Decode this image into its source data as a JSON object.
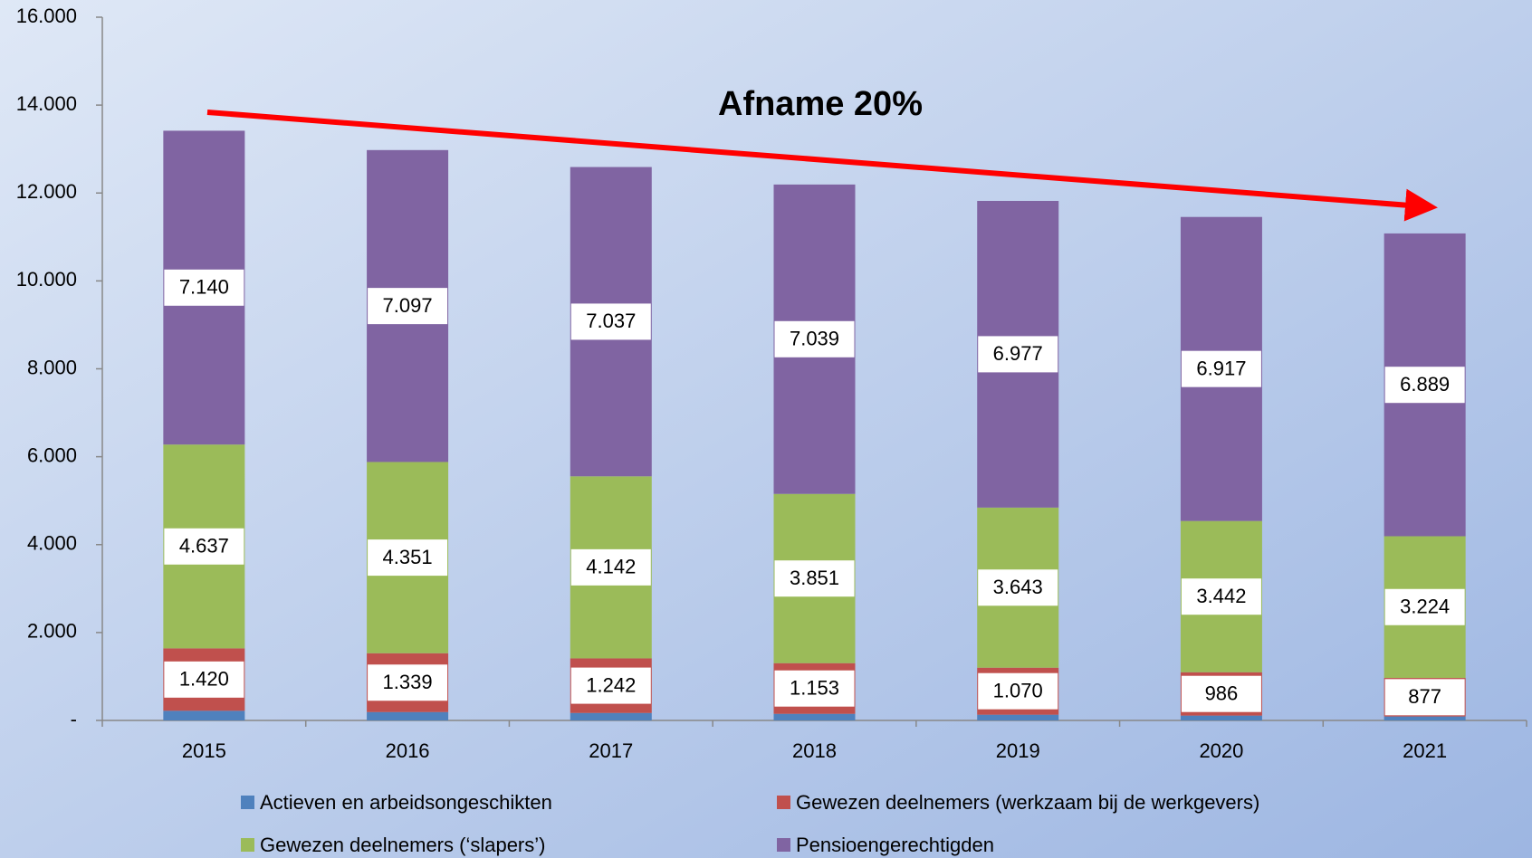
{
  "chart_data": {
    "type": "stacked_bar",
    "annotation": "Afname 20%",
    "categories": [
      "2015",
      "2016",
      "2017",
      "2018",
      "2019",
      "2020",
      "2021"
    ],
    "series": [
      {
        "name": "Actieven en arbeidsongeschikten",
        "color": "#4f81bd",
        "values": [
          220,
          190,
          170,
          150,
          130,
          110,
          90
        ]
      },
      {
        "name": "Gewezen deelnemers (werkzaam bij de werkgevers)",
        "color": "#c0504d",
        "values": [
          1420,
          1339,
          1242,
          1153,
          1070,
          986,
          877
        ],
        "value_labels": [
          "1.420",
          "1.339",
          "1.242",
          "1.153",
          "1.070",
          "986",
          "877"
        ]
      },
      {
        "name": "Gewezen deelnemers (‘slapers’)",
        "color": "#9bbb59",
        "values": [
          4637,
          4351,
          4142,
          3851,
          3643,
          3442,
          3224
        ],
        "value_labels": [
          "4.637",
          "4.351",
          "4.142",
          "3.851",
          "3.643",
          "3.442",
          "3.224"
        ]
      },
      {
        "name": "Pensioengerechtigden",
        "color": "#8064a2",
        "values": [
          7140,
          7097,
          7037,
          7039,
          6977,
          6917,
          6889
        ],
        "value_labels": [
          "7.140",
          "7.097",
          "7.037",
          "7.039",
          "6.977",
          "6.917",
          "6.889"
        ]
      }
    ],
    "ylim": [
      0,
      16000
    ],
    "yticks": [
      {
        "value": 0,
        "label": "-"
      },
      {
        "value": 2000,
        "label": "2.000"
      },
      {
        "value": 4000,
        "label": "4.000"
      },
      {
        "value": 6000,
        "label": "6.000"
      },
      {
        "value": 8000,
        "label": "8.000"
      },
      {
        "value": 10000,
        "label": "10.000"
      },
      {
        "value": 12000,
        "label": "12.000"
      },
      {
        "value": 14000,
        "label": "14.000"
      },
      {
        "value": 16000,
        "label": "16.000"
      }
    ],
    "grid": false,
    "legend": "bottom"
  }
}
